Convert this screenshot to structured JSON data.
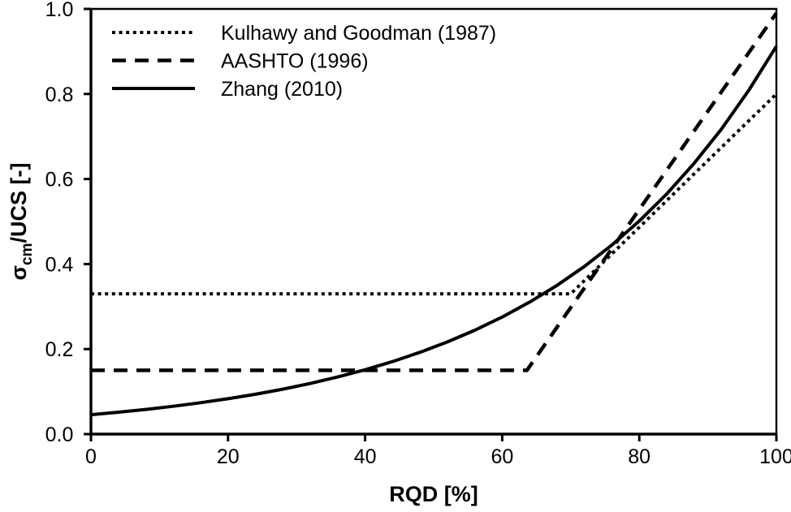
{
  "figure": {
    "background": "#ffffff",
    "ink": "#000000"
  },
  "chart_data": {
    "type": "line",
    "title": "",
    "xlabel": "RQD [%]",
    "ylabel": "σcm/UCS [-]",
    "ylabel_rich": {
      "base": "σ",
      "sub": "cm",
      "rest": "/UCS [-]"
    },
    "xlim": [
      0,
      100
    ],
    "ylim": [
      0.0,
      1.0
    ],
    "xticks": [
      0,
      20,
      40,
      60,
      80,
      100
    ],
    "xtick_labels": [
      "0",
      "20",
      "40",
      "60",
      "80",
      "100"
    ],
    "yticks": [
      0.0,
      0.2,
      0.4,
      0.6,
      0.8,
      1.0
    ],
    "ytick_labels": [
      "0.0",
      "0.2",
      "0.4",
      "0.6",
      "0.8",
      "1.0"
    ],
    "grid": false,
    "legend_position": "upper-left-inside",
    "series": [
      {
        "name": "Kulhawy and Goodman (1987)",
        "style": "dotted",
        "color": "#000000",
        "points": [
          [
            0,
            0.33
          ],
          [
            70,
            0.33
          ],
          [
            100,
            0.8
          ]
        ]
      },
      {
        "name": "AASHTO (1996)",
        "style": "dashed",
        "color": "#000000",
        "points": [
          [
            0,
            0.15
          ],
          [
            63.6,
            0.15
          ],
          [
            100,
            0.99
          ]
        ]
      },
      {
        "name": "Zhang (2010)",
        "style": "solid",
        "color": "#000000",
        "points": [
          [
            0,
            0.0457
          ],
          [
            4,
            0.0515
          ],
          [
            8,
            0.0581
          ],
          [
            12,
            0.0655
          ],
          [
            16,
            0.0738
          ],
          [
            20,
            0.0832
          ],
          [
            24,
            0.0937
          ],
          [
            28,
            0.1057
          ],
          [
            32,
            0.1191
          ],
          [
            36,
            0.1343
          ],
          [
            40,
            0.1514
          ],
          [
            44,
            0.1706
          ],
          [
            48,
            0.1923
          ],
          [
            52,
            0.2168
          ],
          [
            56,
            0.2443
          ],
          [
            60,
            0.2754
          ],
          [
            64,
            0.3105
          ],
          [
            68,
            0.3499
          ],
          [
            72,
            0.3945
          ],
          [
            76,
            0.4446
          ],
          [
            80,
            0.5012
          ],
          [
            84,
            0.5649
          ],
          [
            88,
            0.6368
          ],
          [
            92,
            0.7178
          ],
          [
            96,
            0.8091
          ],
          [
            100,
            0.912
          ]
        ]
      }
    ]
  }
}
